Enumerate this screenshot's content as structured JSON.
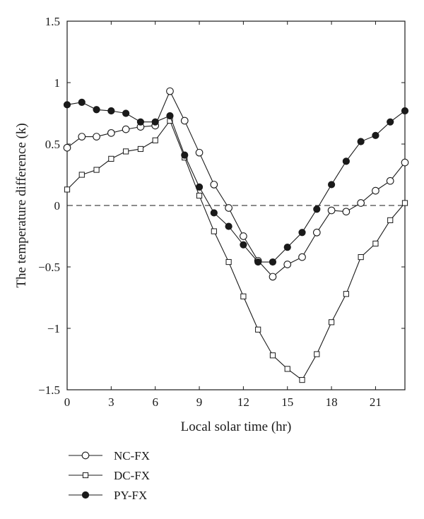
{
  "chart_data": {
    "type": "line",
    "title": "",
    "xlabel": "Local solar time (hr)",
    "ylabel": "The temperature difference (k)",
    "xlim": [
      0,
      23
    ],
    "ylim": [
      -1.5,
      1.5
    ],
    "xticks": [
      0,
      3,
      6,
      9,
      12,
      15,
      18,
      21
    ],
    "yticks": [
      1.5,
      1,
      0.5,
      0,
      -0.5,
      -1,
      -1.5
    ],
    "xtick_labels": [
      "0",
      "3",
      "6",
      "9",
      "12",
      "15",
      "18",
      "21"
    ],
    "ytick_labels": [
      "1.5",
      "1",
      "0.5",
      "0",
      "−0.5",
      "−1",
      "−1.5"
    ],
    "grid": false,
    "reference_line": {
      "y": 0,
      "style": "dashed"
    },
    "legend_position": "bottom-left, below plot",
    "x": [
      0,
      1,
      2,
      3,
      4,
      5,
      6,
      7,
      8,
      9,
      10,
      11,
      12,
      13,
      14,
      15,
      16,
      17,
      18,
      19,
      20,
      21,
      22,
      23
    ],
    "series": [
      {
        "name": "NC-FX",
        "marker": "open-circle",
        "values": [
          0.47,
          0.56,
          0.56,
          0.59,
          0.62,
          0.64,
          0.65,
          0.93,
          0.69,
          0.43,
          0.17,
          -0.02,
          -0.25,
          -0.45,
          -0.58,
          -0.48,
          -0.42,
          -0.22,
          -0.04,
          -0.05,
          0.02,
          0.12,
          0.2,
          0.35
        ]
      },
      {
        "name": "DC-FX",
        "marker": "open-square",
        "values": [
          0.13,
          0.25,
          0.29,
          0.38,
          0.44,
          0.46,
          0.53,
          0.69,
          0.39,
          0.08,
          -0.21,
          -0.46,
          -0.74,
          -1.01,
          -1.22,
          -1.33,
          -1.42,
          -1.21,
          -0.95,
          -0.72,
          -0.42,
          -0.31,
          -0.12,
          0.02
        ]
      },
      {
        "name": "PY-FX",
        "marker": "filled-circle",
        "values": [
          0.82,
          0.84,
          0.78,
          0.77,
          0.75,
          0.68,
          0.68,
          0.73,
          0.41,
          0.15,
          -0.06,
          -0.17,
          -0.32,
          -0.46,
          -0.46,
          -0.34,
          -0.22,
          -0.03,
          0.17,
          0.36,
          0.52,
          0.57,
          0.68,
          0.77
        ]
      }
    ],
    "colors": {
      "line": "#1a1a1a",
      "marker_fill_open": "#ffffff",
      "marker_fill_solid": "#1a1a1a"
    }
  }
}
